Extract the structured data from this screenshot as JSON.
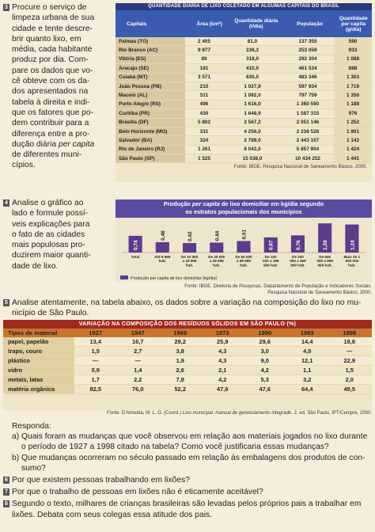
{
  "q3": {
    "num": "3",
    "lines": [
      "Procure o serviço de",
      "limpeza urbana de sua",
      "cidade e tente descre-",
      "brir quanto lixo, em",
      "média, cada habitante",
      "produz por dia. Com-",
      "pare os dados que vo-",
      "cê obteve com os da-",
      "dos apresentados na",
      "tabela à direita e indi-",
      "que os fatores que po-",
      "dem contribuir para a",
      "diferença entre a pro-"
    ],
    "line_em_pre": "dução diária ",
    "line_em": "per capita",
    "line_last": [
      "de diferentes muni-",
      "cípios."
    ]
  },
  "table1": {
    "title": "QUANTIDADE DIÁRIA DE LIXO COLETADO EM ALGUMAS CAPITAIS DO BRASIL",
    "headers": [
      "Capitais",
      "Área (km²)",
      "Quantidade diária (t/dia)",
      "População",
      "Quantidade per capita (g/dia)"
    ],
    "rows": [
      [
        "Palmas (TO)",
        "2 405",
        "81,0",
        "137 355",
        "590"
      ],
      [
        "Rio Branco (AC)",
        "9 877",
        "236,2",
        "253 059",
        "933"
      ],
      [
        "Vitória (ES)",
        "89",
        "318,0",
        "292 304",
        "1 088"
      ],
      [
        "Aracaju (SE)",
        "181",
        "410,0",
        "461 534",
        "888"
      ],
      [
        "Cuiabá (MT)",
        "3 571",
        "630,0",
        "483 346",
        "1 303"
      ],
      [
        "João Pessoa (PB)",
        "210",
        "1 027,9",
        "597 934",
        "1 719"
      ],
      [
        "Maceió (AL)",
        "511",
        "1 082,0",
        "797 759",
        "1 356"
      ],
      [
        "Porto Alegre (RS)",
        "496",
        "1 616,0",
        "1 360 590",
        "1 188"
      ],
      [
        "Curitiba (PR)",
        "430",
        "1 648,9",
        "1 587 315",
        "976"
      ],
      [
        "Brasília (DF)",
        "5 802",
        "2 567,2",
        "2 051 146",
        "1 252"
      ],
      [
        "Belo Horizonte (MG)",
        "331",
        "4 256,0",
        "2 238 526",
        "1 901"
      ],
      [
        "Salvador (BA)",
        "324",
        "2 789,0",
        "2 443 107",
        "1 142"
      ],
      [
        "Rio de Janeiro (RJ)",
        "1 261",
        "8 043,0",
        "5 857 904",
        "1 424"
      ],
      [
        "São Paulo (SP)",
        "1 525",
        "15 038,0",
        "10 434 252",
        "1 441"
      ]
    ],
    "source": "Fonte: IBGE. Pesquisa Nacional de Saneamento Básico, 2000."
  },
  "q4": {
    "num": "4",
    "lines": [
      "Analise o gráfico ao",
      "lado e formule possí-",
      "veis explicações para",
      "o fato de as cidades",
      "mais populosas pro-",
      "duzirem maior quanti-",
      "dade de lixo."
    ]
  },
  "chart_data": {
    "type": "bar",
    "title_line1_pre": "Produção ",
    "title_line1_em": "per capita",
    "title_line1_post": " de lixo domiciliar em kg/dia segundo",
    "title_line2": "os estratos populacionais dos municípios",
    "categories": [
      "Total",
      "Até 9 999 hab.",
      "De 10 000 a 19 999 hab.",
      "De 20 000 a 49 999 hab.",
      "De 50 000 a 99 999 hab.",
      "De 100 000 a 199 999 hab.",
      "De 200 000 a 499 999 hab.",
      "De 500 000 a 999 999 hab.",
      "Mais de 1 000 000 hab."
    ],
    "values": [
      0.74,
      0.46,
      0.42,
      0.44,
      0.51,
      0.67,
      0.76,
      1.29,
      1.24
    ],
    "value_labels": [
      "0,74",
      "0,46",
      "0,42",
      "0,44",
      "0,51",
      "0,67",
      "0,76",
      "1,29",
      "1,24"
    ],
    "ylim": [
      0,
      1.4
    ],
    "legend": "Produção per capita de lixo domiciliar (kg/dia)",
    "color": "#5a3c8c"
  },
  "chart_source_line1": "Fonte: IBGE, Diretoria de Pesquisas. Departamento de População e Indicadores Sociais.",
  "chart_source_line2": "Pesquisa Nacional de Saneamento Básico, 2000.",
  "q5": {
    "num": "5",
    "line1": "Analise atentamente, na tabela abaixo, os dados sobre a variação na composição do lixo no mu-",
    "line2": "nicípio de São Paulo."
  },
  "table2": {
    "title": "VARIAÇÃO NA COMPOSIÇÃO DOS RESÍDUOS SÓLIDOS EM SÃO PAULO (%)",
    "headers": [
      "Tipos de material",
      "1927",
      "1947",
      "1969",
      "1972",
      "1990",
      "1993",
      "1998"
    ],
    "rows": [
      [
        "papel, papelão",
        "13,4",
        "16,7",
        "29,2",
        "25,9",
        "29,6",
        "14,4",
        "18,8"
      ],
      [
        "trapo, couro",
        "1,5",
        "2,7",
        "3,8",
        "4,3",
        "3,0",
        "4,5",
        "—"
      ],
      [
        "plástico",
        "—",
        "—",
        "1,9",
        "4,3",
        "9,0",
        "12,1",
        "22,9"
      ],
      [
        "vidro",
        "0,9",
        "1,4",
        "2,6",
        "2,1",
        "4,2",
        "1,1",
        "1,5"
      ],
      [
        "metais, latas",
        "1,7",
        "2,2",
        "7,8",
        "4,2",
        "5,3",
        "3,2",
        "2,0"
      ],
      [
        "matéria orgânica",
        "82,5",
        "76,0",
        "52,2",
        "47,6",
        "47,6",
        "64,4",
        "49,5"
      ]
    ],
    "source_pre": "Fonte: D'Almeida, M. L. O. (Coord.) ",
    "source_em": "Lixo municipal: manual de gerenciamento integrado",
    "source_post": ". 2. ed. São Paulo, IPT/Cempre, 2000."
  },
  "responda": "Responda:",
  "qa": [
    "a) Quais foram as mudanças que você observou em relação aos materiais jogados no lixo durante",
    "o período de 1927 a 1998 citado na tabela? Como você justificaria essas mudanças?"
  ],
  "qb": [
    "b) Que mudanças ocorreram no século passado em relação às embalagens dos produtos de con-",
    "sumo?"
  ],
  "q6": {
    "num": "6",
    "text": "Por que existem pessoas trabalhando em lixões?"
  },
  "q7": {
    "num": "7",
    "text": "Por que o trabalho de pessoas em lixões não é eticamente aceitável?"
  },
  "q8": {
    "num": "8",
    "line1": "Segundo o texto, milhares de crianças brasileiras são levadas pelos próprios pais a trabalhar em",
    "line2": "lixões. Debata com seus colegas essa atitude dos pais."
  }
}
